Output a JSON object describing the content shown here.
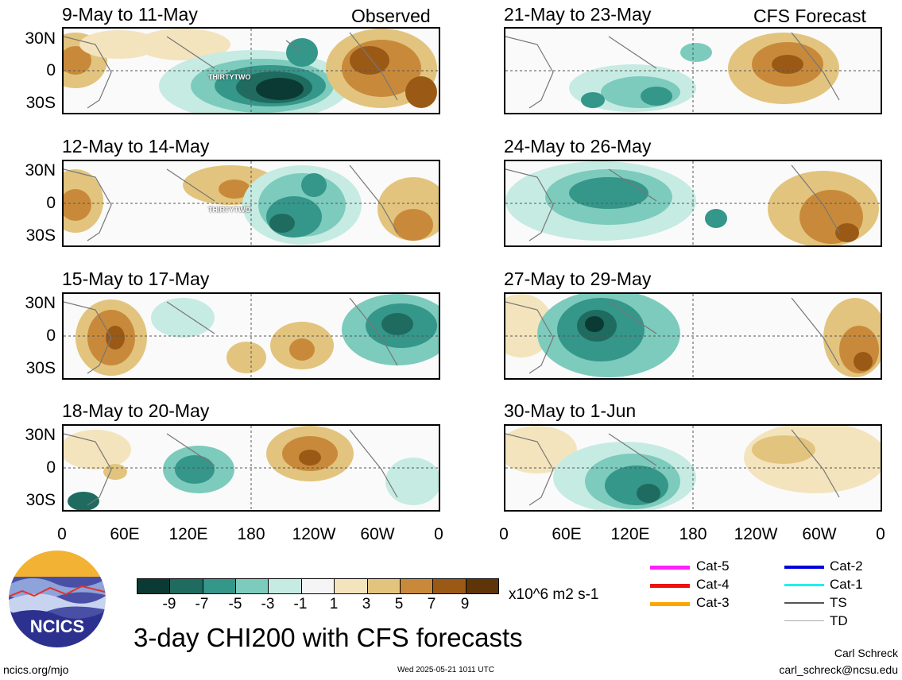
{
  "panels_left_header": {
    "observed_label": "Observed"
  },
  "panels_right_header": {
    "forecast_label": "CFS Forecast"
  },
  "panels": [
    {
      "title": "9-May to 11-May",
      "storm_label": "THIRTYTWO"
    },
    {
      "title": "12-May to 14-May",
      "storm_label": "THIRTYTWO"
    },
    {
      "title": "15-May to 17-May",
      "storm_label": ""
    },
    {
      "title": "18-May to 20-May",
      "storm_label": ""
    },
    {
      "title": "21-May to 23-May",
      "storm_label": ""
    },
    {
      "title": "24-May to 26-May",
      "storm_label": ""
    },
    {
      "title": "27-May to 29-May",
      "storm_label": ""
    },
    {
      "title": "30-May to 1-Jun",
      "storm_label": ""
    }
  ],
  "lat_labels": [
    "30N",
    "0",
    "30S"
  ],
  "lon_labels": [
    "0",
    "60E",
    "120E",
    "180",
    "120W",
    "60W",
    "0"
  ],
  "colorbar": {
    "tick_labels": [
      "-9",
      "-7",
      "-5",
      "-3",
      "-1",
      "1",
      "3",
      "5",
      "7",
      "9"
    ],
    "units": "x10^6 m2 s-1",
    "colors": [
      "#0a3a33",
      "#1f6b5f",
      "#35968a",
      "#7ccbbd",
      "#c6ebe3",
      "#f5f5f5",
      "#f3e4bd",
      "#e2c47e",
      "#c88a3a",
      "#9a5a16",
      "#5e3408"
    ]
  },
  "storm_legend": [
    {
      "label": "Cat-5",
      "color": "#ff20ff"
    },
    {
      "label": "Cat-4",
      "color": "#ee1111"
    },
    {
      "label": "Cat-3",
      "color": "#ffa500"
    },
    {
      "label": "Cat-2",
      "color": "#0000dd"
    },
    {
      "label": "Cat-1",
      "color": "#22eeee"
    },
    {
      "label": "TS",
      "color": "#555555"
    },
    {
      "label": "TD",
      "color": "#aaaaaa"
    }
  ],
  "logo": {
    "text": "NCICS"
  },
  "main_title": "3-day CHI200 with CFS forecasts",
  "footer": {
    "url": "ncics.org/mjo",
    "timestamp": "Wed 2025-05-21 1011 UTC",
    "author": "Carl Schreck",
    "email": "carl_schreck@ncsu.edu"
  }
}
